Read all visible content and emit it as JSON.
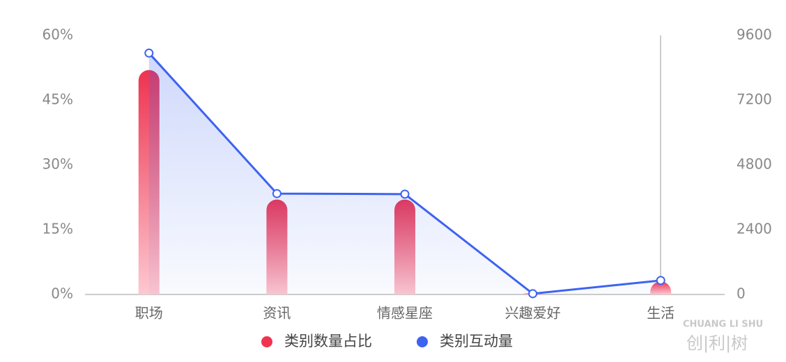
{
  "chart_data": {
    "type": "bar-line",
    "categories": [
      "职场",
      "资讯",
      "情感星座",
      "兴趣爱好",
      "生活"
    ],
    "series": [
      {
        "name": "类别数量占比",
        "color": "#f0344f",
        "type": "bar",
        "values": [
          52,
          22,
          22,
          0.3,
          3
        ]
      },
      {
        "name": "类别互动量",
        "color": "#3d63f0",
        "type": "line",
        "axis": "y2",
        "values": [
          8950,
          3740,
          3720,
          30,
          520
        ]
      }
    ],
    "ylim": [
      0,
      60
    ],
    "yticks": [
      {
        "value": 0,
        "label": "0%"
      },
      {
        "value": 15,
        "label": "15%"
      },
      {
        "value": 30,
        "label": "30%"
      },
      {
        "value": 45,
        "label": "45%"
      },
      {
        "value": 60,
        "label": "60%"
      }
    ],
    "y2lim": [
      0,
      9600
    ],
    "y2ticks": [
      0,
      2400,
      4800,
      7200,
      9600
    ],
    "legend": "bottom",
    "watermark": {
      "top": "CHUANG LI SHU",
      "bottom": "创|利|树"
    }
  }
}
